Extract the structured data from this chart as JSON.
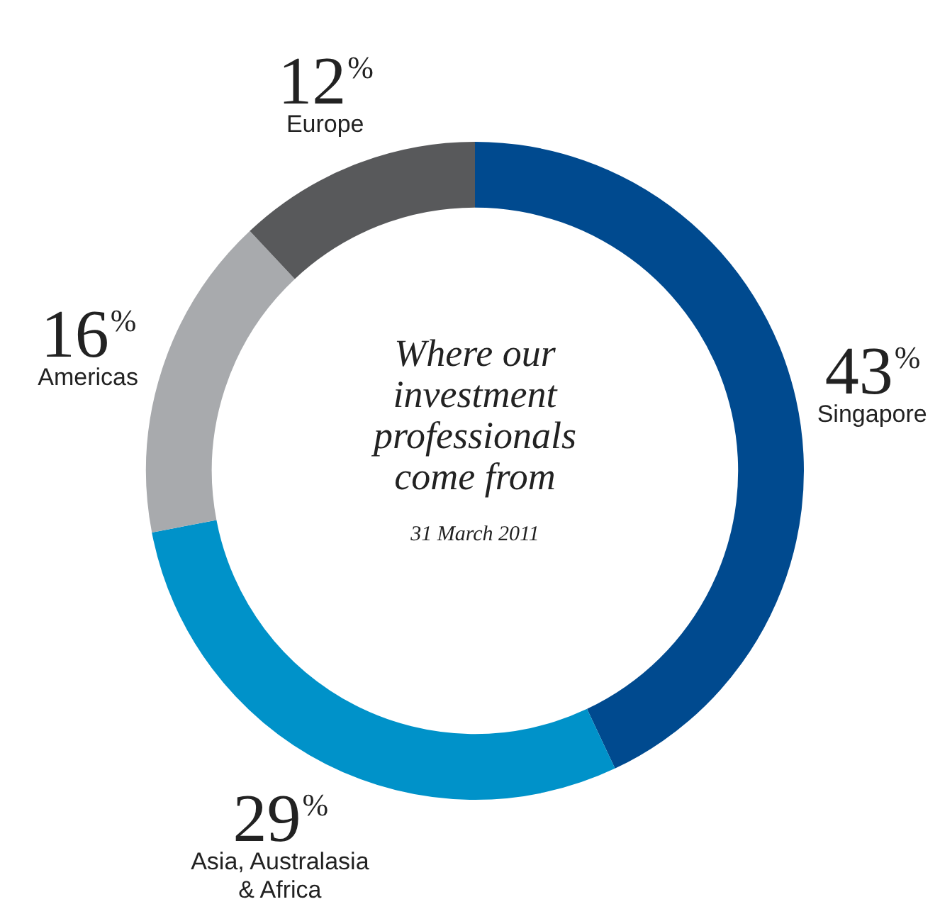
{
  "chart_data": {
    "type": "donut",
    "title": "Where our investment professionals come from",
    "subtitle": "31 March 2011",
    "categories": [
      "Singapore",
      "Asia, Australasia & Africa",
      "Americas",
      "Europe"
    ],
    "values": [
      43,
      29,
      16,
      12
    ],
    "colors": [
      "#004a8f",
      "#0092c9",
      "#a8aaad",
      "#58595b"
    ],
    "value_labels": [
      "43%",
      "29%",
      "16%",
      "12%"
    ],
    "legend": false
  }
}
